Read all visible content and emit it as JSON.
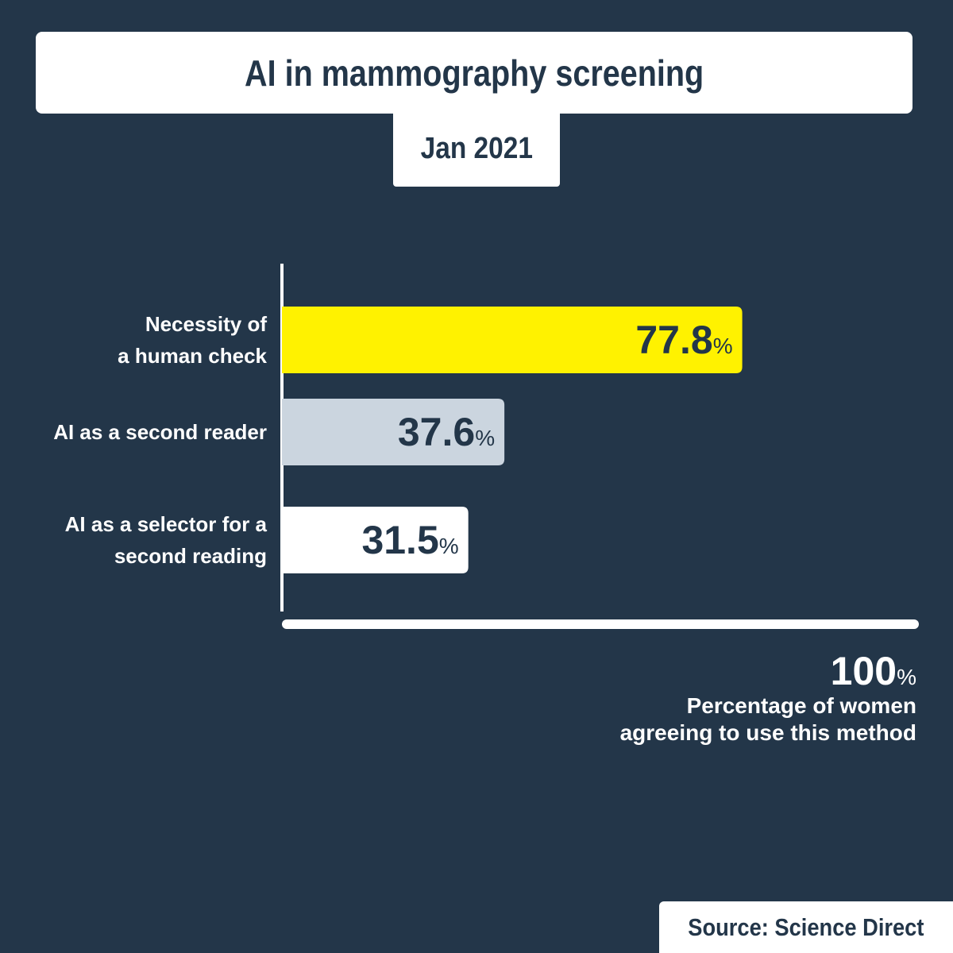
{
  "title": "AI in mammography screening",
  "date": "Jan 2021",
  "source": "Source: Science Direct",
  "colors": {
    "background": "#233649",
    "bar_highlight": "#fff200",
    "bar_secondary": "#cbd5df",
    "bar_tertiary": "#ffffff",
    "text_dark": "#233649"
  },
  "chart_data": {
    "type": "bar",
    "orientation": "horizontal",
    "categories": [
      [
        "Necessity of",
        "a human check"
      ],
      [
        "AI as a second reader"
      ],
      [
        "AI as a selector for a",
        "second reading"
      ]
    ],
    "values": [
      77.8,
      37.6,
      31.5
    ],
    "value_labels": [
      "77.8",
      "37.6",
      "31.5"
    ],
    "value_unit": "%",
    "xlim": [
      0,
      100
    ],
    "axis_max_label": "100",
    "xlabel": [
      "Percentage of women",
      "agreeing to use this method"
    ],
    "grid": false
  }
}
